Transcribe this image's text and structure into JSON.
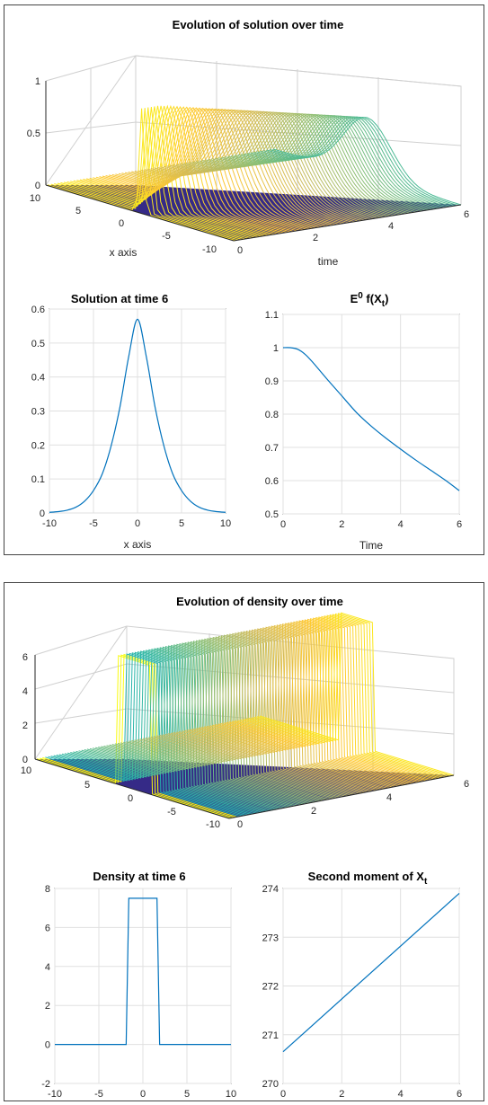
{
  "colors": {
    "line": "#0072BD",
    "surface_floor": "#352A87",
    "viridis": [
      "#352A87",
      "#0F5CDD",
      "#1481D6",
      "#06A4CA",
      "#2EB7A4",
      "#87BF77",
      "#D1BB59",
      "#FEC832",
      "#F9FB0E"
    ],
    "grid": "#e0e0e0",
    "axis": "#262626"
  },
  "figure1": {
    "surface": {
      "title": "Evolution of solution over time",
      "xlabel": "x axis",
      "ylabel": "time",
      "zticks": [
        "0",
        "0.5",
        "1"
      ],
      "xticks": [
        "10",
        "5",
        "0",
        "-5",
        "-10"
      ],
      "yticks": [
        "0",
        "2",
        "4",
        "6"
      ],
      "colormap": "parula"
    },
    "left": {
      "title": "Solution at time 6",
      "xlabel": "x axis",
      "xticks": [
        "-10",
        "-5",
        "0",
        "5",
        "10"
      ],
      "yticks": [
        "0",
        "0.1",
        "0.2",
        "0.3",
        "0.4",
        "0.5",
        "0.6"
      ]
    },
    "right": {
      "title_main": "E",
      "title_sup": "0",
      "title_mid": " f(X",
      "title_sub": "t",
      "title_end": ")",
      "xlabel": "Time",
      "xticks": [
        "0",
        "2",
        "4",
        "6"
      ],
      "yticks": [
        "0.5",
        "0.6",
        "0.7",
        "0.8",
        "0.9",
        "1",
        "1.1"
      ]
    }
  },
  "figure2": {
    "surface": {
      "title": "Evolution of density over time",
      "zticks": [
        "0",
        "2",
        "4",
        "6"
      ],
      "xticks": [
        "10",
        "5",
        "0",
        "-5",
        "-10"
      ],
      "yticks": [
        "0",
        "2",
        "4",
        "6"
      ],
      "colormap": "parula"
    },
    "left": {
      "title": "Density at time 6",
      "xticks": [
        "-10",
        "-5",
        "0",
        "5",
        "10"
      ],
      "yticks": [
        "-2",
        "0",
        "2",
        "4",
        "6",
        "8"
      ]
    },
    "right": {
      "title_main": "Second moment of X",
      "title_sub": "t",
      "xticks": [
        "0",
        "2",
        "4",
        "6"
      ],
      "yticks": [
        "270",
        "271",
        "272",
        "273",
        "274"
      ]
    }
  },
  "chart_data": [
    {
      "type": "surface",
      "title": "Evolution of solution over time",
      "xlabel": "x axis",
      "ylabel": "time",
      "xlim": [
        -10,
        10
      ],
      "ylim": [
        0,
        6
      ],
      "zlim": [
        0,
        1
      ],
      "description_values": {
        "peak_at_t0": 1.0,
        "peak_at_t6": 0.57
      }
    },
    {
      "type": "line",
      "title": "Solution at time 6",
      "xlabel": "x axis",
      "xlim": [
        -10,
        10
      ],
      "ylim": [
        0,
        0.6
      ],
      "x": [
        -10,
        -9,
        -8,
        -7,
        -6,
        -5,
        -4,
        -3,
        -2,
        -1,
        0,
        1,
        2,
        3,
        4,
        5,
        6,
        7,
        8,
        9,
        10
      ],
      "y": [
        0.002,
        0.004,
        0.008,
        0.017,
        0.035,
        0.066,
        0.115,
        0.197,
        0.311,
        0.46,
        0.57,
        0.46,
        0.311,
        0.197,
        0.115,
        0.066,
        0.035,
        0.017,
        0.008,
        0.004,
        0.002
      ]
    },
    {
      "type": "line",
      "title": "E0 f(Xt)",
      "xlabel": "Time",
      "xlim": [
        0,
        6
      ],
      "ylim": [
        0.5,
        1.1
      ],
      "x": [
        0,
        0.25,
        0.5,
        0.75,
        1,
        1.5,
        2,
        2.5,
        3,
        3.5,
        4,
        4.5,
        5,
        5.5,
        6
      ],
      "y": [
        1.0,
        1.0,
        0.995,
        0.98,
        0.957,
        0.905,
        0.855,
        0.805,
        0.764,
        0.728,
        0.695,
        0.663,
        0.633,
        0.603,
        0.57
      ]
    },
    {
      "type": "surface",
      "title": "Evolution of density over time",
      "xlim": [
        -10,
        10
      ],
      "ylim": [
        0,
        6
      ],
      "zlim": [
        0,
        7.5
      ],
      "description_values": {
        "plateau": 7.5
      }
    },
    {
      "type": "line",
      "title": "Density at time 6",
      "xlim": [
        -10,
        10
      ],
      "ylim": [
        -2,
        8
      ],
      "x": [
        -10,
        -1.9,
        -1.6,
        1.6,
        1.9,
        10
      ],
      "y": [
        0,
        0,
        7.5,
        7.5,
        0,
        0
      ]
    },
    {
      "type": "line",
      "title": "Second moment of Xt",
      "xlim": [
        0,
        6
      ],
      "ylim": [
        270,
        274
      ],
      "x": [
        0,
        6
      ],
      "y": [
        270.65,
        273.9
      ]
    }
  ]
}
